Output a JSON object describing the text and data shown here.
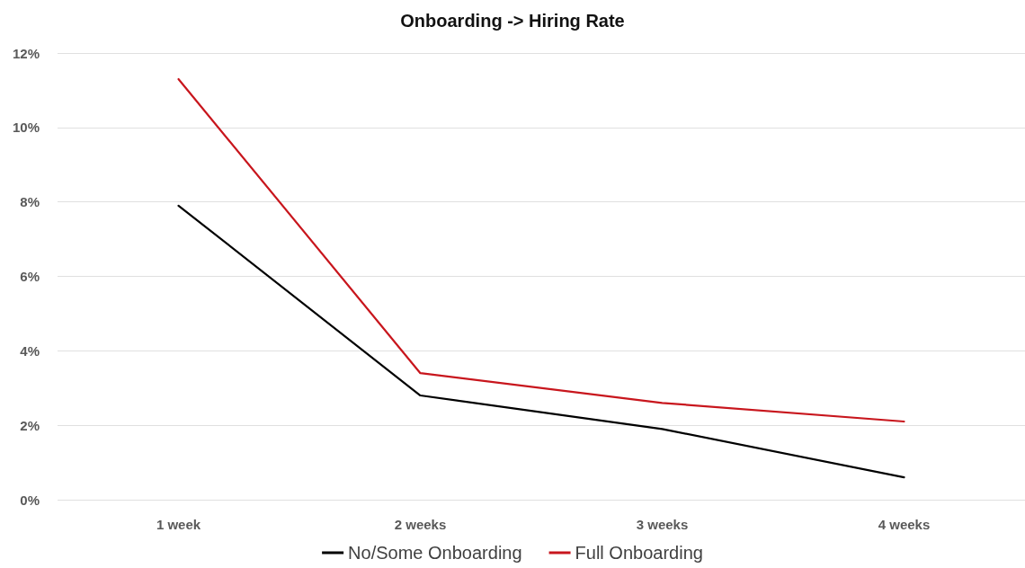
{
  "chart_data": {
    "type": "line",
    "title": "Onboarding -> Hiring Rate",
    "categories": [
      "1 week",
      "2 weeks",
      "3 weeks",
      "4 weeks"
    ],
    "series": [
      {
        "name": "No/Some Onboarding",
        "color": "#000000",
        "values": [
          7.9,
          2.8,
          1.9,
          0.6
        ]
      },
      {
        "name": "Full Onboarding",
        "color": "#c8161d",
        "values": [
          11.3,
          3.4,
          2.6,
          2.1
        ]
      }
    ],
    "ylim": [
      0,
      12
    ],
    "yticks": [
      {
        "value": 0,
        "label": "0%"
      },
      {
        "value": 2,
        "label": "2%"
      },
      {
        "value": 4,
        "label": "4%"
      },
      {
        "value": 6,
        "label": "6%"
      },
      {
        "value": 8,
        "label": "8%"
      },
      {
        "value": 10,
        "label": "10%"
      },
      {
        "value": 12,
        "label": "12%"
      }
    ],
    "grid": "y",
    "legend": "bottom",
    "marker": "none",
    "line_style": "solid"
  }
}
